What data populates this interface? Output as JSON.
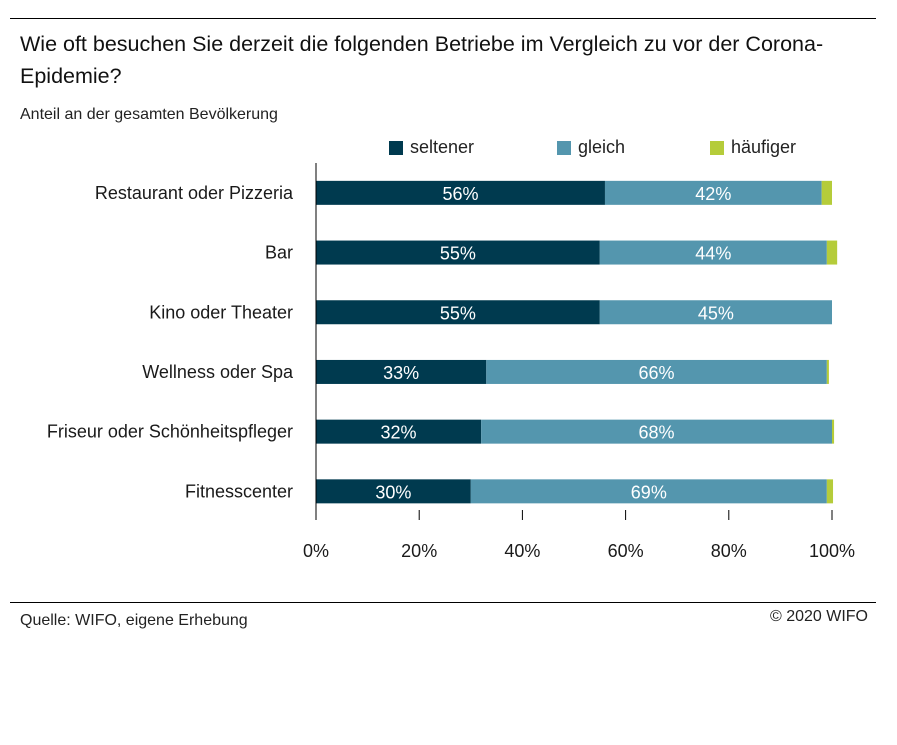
{
  "header": {
    "title": "Wie oft besuchen Sie derzeit die folgenden Betriebe im Vergleich zu vor der Corona-Epidemie?",
    "subtitle": "Anteil an der gesamten Bevölkerung"
  },
  "footer": {
    "source": "Quelle: WIFO, eigene Erhebung",
    "copyright": "© 2020 WIFO"
  },
  "colors": {
    "seltener": "#003a4f",
    "gleich": "#5496ae",
    "haeufiger": "#b5cc3a"
  },
  "chart_data": {
    "type": "bar",
    "orientation": "horizontal",
    "stacked": true,
    "categories": [
      "Restaurant oder Pizzeria",
      "Bar",
      "Kino oder Theater",
      "Wellness oder Spa",
      "Friseur oder Schönheitspfleger",
      "Fitnesscenter"
    ],
    "series": [
      {
        "name": "seltener",
        "values": [
          56,
          55,
          55,
          33,
          32,
          30
        ],
        "labels": [
          "56%",
          "55%",
          "55%",
          "33%",
          "32%",
          "30%"
        ]
      },
      {
        "name": "gleich",
        "values": [
          42,
          44,
          45,
          66,
          68,
          69
        ],
        "labels": [
          "42%",
          "44%",
          "45%",
          "66%",
          "68%",
          "69%"
        ]
      },
      {
        "name": "häufiger",
        "values": [
          2,
          2,
          0,
          0.4,
          0.4,
          1.2
        ]
      }
    ],
    "xlim": [
      0,
      100
    ],
    "xticks": [
      "0%",
      "20%",
      "40%",
      "60%",
      "80%",
      "100%"
    ],
    "legend_position": "top",
    "grid": false
  }
}
